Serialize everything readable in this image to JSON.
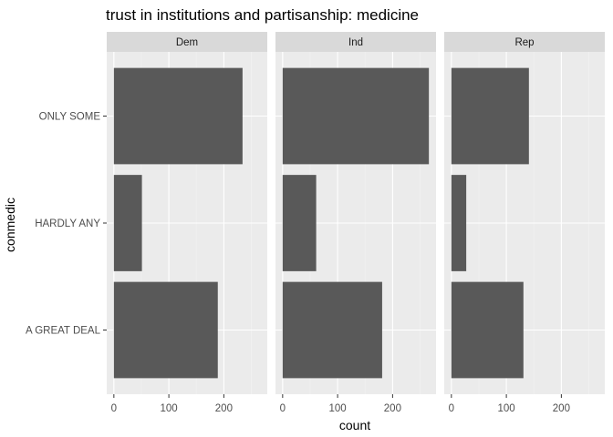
{
  "chart_data": {
    "type": "bar",
    "orientation": "horizontal",
    "title": "trust in institutions and partisanship: medicine",
    "xlabel": "count",
    "ylabel": "conmedic",
    "categories": [
      "A GREAT DEAL",
      "HARDLY ANY",
      "ONLY SOME"
    ],
    "facets": [
      {
        "name": "Dem",
        "values": [
          189,
          51,
          234
        ]
      },
      {
        "name": "Ind",
        "values": [
          181,
          61,
          266
        ]
      },
      {
        "name": "Rep",
        "values": [
          131,
          27,
          141
        ]
      }
    ],
    "xlim": [
      -13,
      279
    ],
    "xticks": [
      0,
      100,
      200
    ],
    "grid": true,
    "colors": {
      "bar": "#595959",
      "panel": "#ebebeb",
      "strip": "#d9d9d9",
      "grid_major": "#ffffff",
      "grid_minor": "#f2f2f2"
    }
  }
}
